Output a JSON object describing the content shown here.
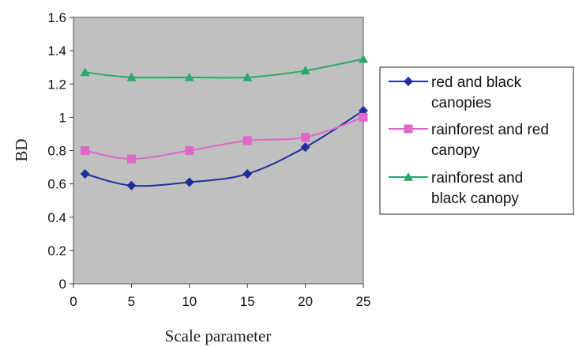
{
  "chart_data": {
    "type": "line",
    "title": "",
    "xlabel": "Scale parameter",
    "ylabel": "BD",
    "x": [
      1,
      5,
      10,
      15,
      20,
      25
    ],
    "xlim": [
      0,
      25
    ],
    "ylim": [
      0,
      1.6
    ],
    "xticks": [
      "0",
      "5",
      "10",
      "15",
      "20",
      "25"
    ],
    "yticks": [
      "0",
      "0.2",
      "0.4",
      "0.6",
      "0.8",
      "1",
      "1.2",
      "1.4",
      "1.6"
    ],
    "grid": false,
    "plot_background": "#c0c0c0",
    "legend_position": "right",
    "series": [
      {
        "name_lines": [
          "red and black",
          "canopies"
        ],
        "values": [
          0.66,
          0.59,
          0.61,
          0.66,
          0.82,
          1.04
        ],
        "color": "#1f2f9a",
        "marker": "diamond"
      },
      {
        "name_lines": [
          "rainforest and red",
          "canopy"
        ],
        "values": [
          0.8,
          0.75,
          0.8,
          0.86,
          0.88,
          1.0
        ],
        "color": "#e066c8",
        "marker": "square"
      },
      {
        "name_lines": [
          "rainforest and",
          "black canopy"
        ],
        "values": [
          1.27,
          1.24,
          1.24,
          1.24,
          1.28,
          1.35
        ],
        "color": "#2aa86a",
        "marker": "triangle"
      }
    ]
  }
}
